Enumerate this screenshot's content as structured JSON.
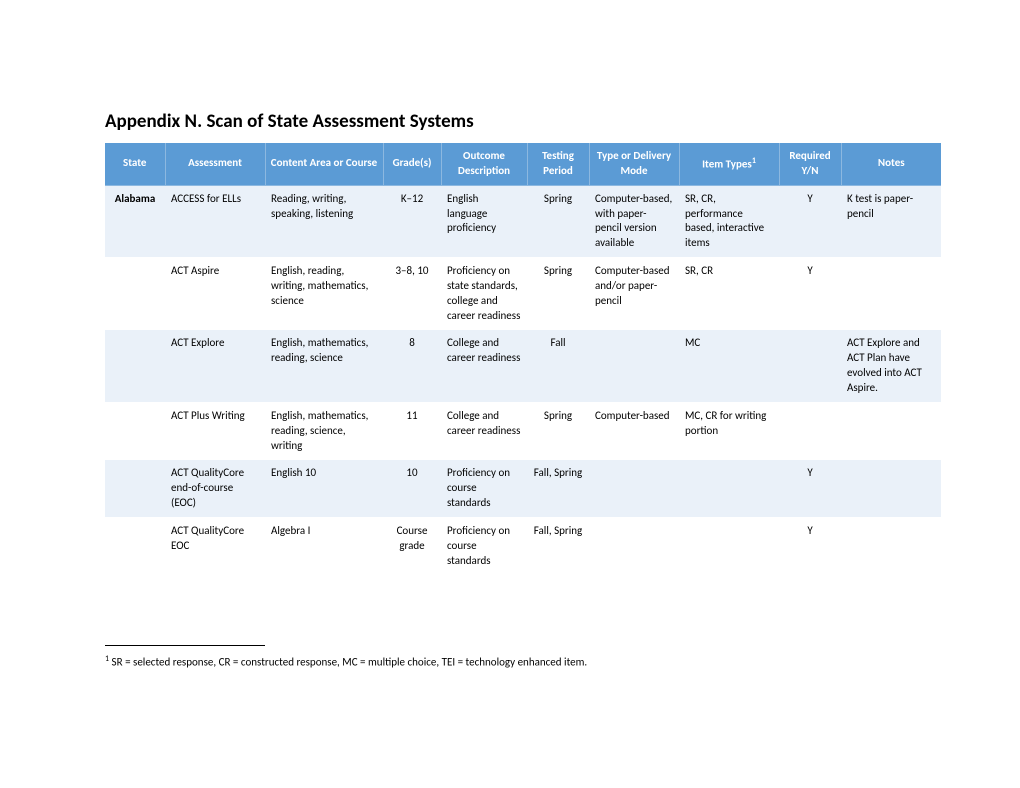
{
  "title": "Appendix N. Scan of State Assessment Systems",
  "table": {
    "header_bg": "#5b9bd5",
    "header_fg": "#ffffff",
    "row_odd_bg": "#eaf1f9",
    "row_even_bg": "#ffffff",
    "columns": [
      "State",
      "Assessment",
      "Content Area or Course",
      "Grade(s)",
      "Outcome Description",
      "Testing Period",
      "Type or Delivery Mode",
      "Item Types",
      "Required Y/N",
      "Notes"
    ],
    "superscript_col": 7,
    "rows": [
      {
        "state": "Alabama",
        "assessment": "ACCESS for ELLs",
        "content": "Reading, writing, speaking, listening",
        "grades": "K–12",
        "outcome": "English language proficiency",
        "period": "Spring",
        "delivery": "Computer-based, with paper-pencil version available",
        "item": "SR, CR, performance based, interactive items",
        "required": "Y",
        "notes": "K test is paper-pencil"
      },
      {
        "state": "",
        "assessment": "ACT Aspire",
        "content": "English, reading, writing, mathematics, science",
        "grades": "3–8, 10",
        "outcome": "Proficiency on state standards, college and career readiness",
        "period": "Spring",
        "delivery": "Computer-based and/or paper-pencil",
        "item": "SR, CR",
        "required": "Y",
        "notes": ""
      },
      {
        "state": "",
        "assessment": "ACT Explore",
        "content": "English, mathematics, reading, science",
        "grades": "8",
        "outcome": "College and career readiness",
        "period": "Fall",
        "delivery": "",
        "item": "MC",
        "required": "",
        "notes": "ACT Explore and ACT Plan have evolved into ACT Aspire."
      },
      {
        "state": "",
        "assessment": "ACT Plus Writing",
        "content": "English, mathematics, reading, science, writing",
        "grades": "11",
        "outcome": "College and career readiness",
        "period": "Spring",
        "delivery": "Computer-based",
        "item": "MC, CR for writing portion",
        "required": "",
        "notes": ""
      },
      {
        "state": "",
        "assessment": "ACT QualityCore end-of-course (EOC)",
        "content": "English 10",
        "grades": "10",
        "outcome": "Proficiency on course standards",
        "period": "Fall, Spring",
        "delivery": "",
        "item": "",
        "required": "Y",
        "notes": ""
      },
      {
        "state": "",
        "assessment": "ACT QualityCore EOC",
        "content": "Algebra I",
        "grades": "Course grade",
        "outcome": "Proficiency on course standards",
        "period": "Fall, Spring",
        "delivery": "",
        "item": "",
        "required": "Y",
        "notes": ""
      }
    ]
  },
  "footnote": {
    "num": "1",
    "text": " SR = selected response, CR = constructed response, MC = multiple choice, TEI = technology enhanced item."
  }
}
